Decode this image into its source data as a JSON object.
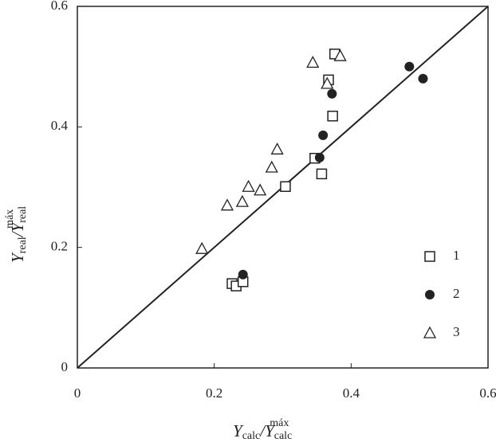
{
  "chart_data": {
    "type": "scatter",
    "x_label": {
      "var": "Y",
      "sub": "calc",
      "slash": "/",
      "var2": "Y",
      "sub2": "calc",
      "sup2": "máx"
    },
    "y_label": {
      "var": "Y",
      "sub": "real",
      "slash": "/",
      "var2": "Y",
      "sub2": "real",
      "sup2": "máx"
    },
    "xlim": [
      0,
      0.6
    ],
    "ylim": [
      0,
      0.6
    ],
    "xticks": [
      0,
      0.2,
      0.4,
      0.6
    ],
    "yticks": [
      0,
      0.2,
      0.4,
      0.6
    ],
    "legend": "lower right",
    "diagonal": true,
    "series": [
      {
        "name": "1",
        "marker": "square",
        "color": "#222",
        "x": [
          0.376,
          0.367,
          0.373,
          0.347,
          0.357,
          0.304,
          0.226,
          0.232,
          0.242
        ],
        "values": [
          0.521,
          0.478,
          0.418,
          0.348,
          0.322,
          0.301,
          0.14,
          0.136,
          0.143
        ]
      },
      {
        "name": "2",
        "marker": "circle",
        "color": "#222",
        "x": [
          0.485,
          0.505,
          0.372,
          0.359,
          0.354,
          0.242
        ],
        "values": [
          0.5,
          0.48,
          0.455,
          0.386,
          0.349,
          0.155
        ]
      },
      {
        "name": "3",
        "marker": "triangle",
        "color": "#222",
        "x": [
          0.344,
          0.384,
          0.365,
          0.292,
          0.284,
          0.25,
          0.267,
          0.241,
          0.219,
          0.182
        ],
        "values": [
          0.507,
          0.518,
          0.472,
          0.363,
          0.333,
          0.301,
          0.295,
          0.276,
          0.27,
          0.198
        ]
      }
    ]
  }
}
